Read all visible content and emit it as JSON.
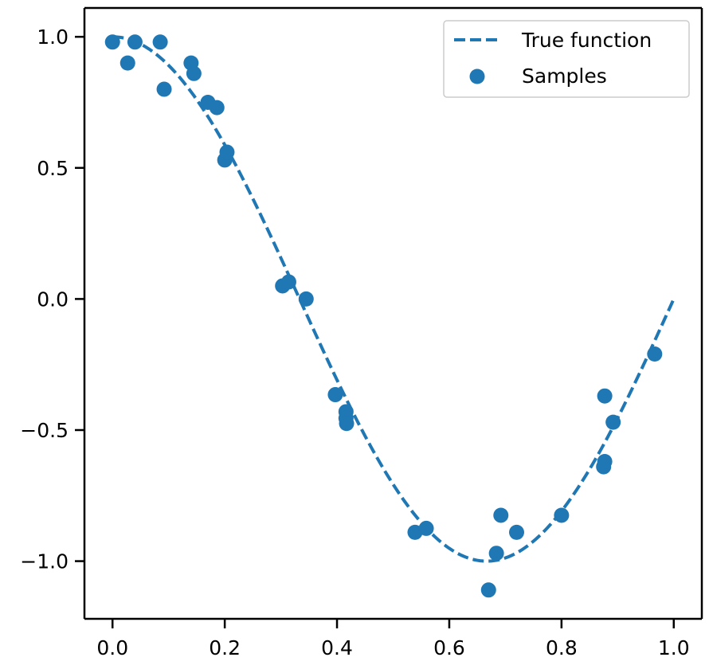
{
  "chart_data": {
    "type": "scatter",
    "title": "",
    "xlabel": "",
    "ylabel": "",
    "xlim": [
      -0.05,
      1.05
    ],
    "ylim": [
      -1.22,
      1.11
    ],
    "x_ticks": [
      0.0,
      0.2,
      0.4,
      0.6,
      0.8,
      1.0
    ],
    "x_tick_labels": [
      "0.0",
      "0.2",
      "0.4",
      "0.6",
      "0.8",
      "1.0"
    ],
    "y_ticks": [
      1.0,
      0.5,
      0.0,
      -0.5,
      -1.0
    ],
    "y_tick_labels": [
      "1.0",
      "0.5",
      "0.0",
      "−0.5",
      "−1.0"
    ],
    "grid": false,
    "legend_position": "top-right",
    "color": "#1f77b4",
    "series": [
      {
        "name": "True function",
        "kind": "line",
        "style": "dashed",
        "function": "cos(1.5*pi*x)",
        "x_range": [
          0.0,
          1.0
        ]
      },
      {
        "name": "Samples",
        "kind": "scatter",
        "points": [
          [
            0.0,
            0.98
          ],
          [
            0.027,
            0.9
          ],
          [
            0.04,
            0.98
          ],
          [
            0.085,
            0.98
          ],
          [
            0.092,
            0.8
          ],
          [
            0.14,
            0.9
          ],
          [
            0.145,
            0.86
          ],
          [
            0.17,
            0.75
          ],
          [
            0.186,
            0.73
          ],
          [
            0.2,
            0.53
          ],
          [
            0.204,
            0.56
          ],
          [
            0.303,
            0.05
          ],
          [
            0.314,
            0.065
          ],
          [
            0.345,
            0.0
          ],
          [
            0.397,
            -0.365
          ],
          [
            0.416,
            -0.43
          ],
          [
            0.416,
            -0.455
          ],
          [
            0.417,
            -0.475
          ],
          [
            0.539,
            -0.89
          ],
          [
            0.559,
            -0.875
          ],
          [
            0.67,
            -1.11
          ],
          [
            0.684,
            -0.97
          ],
          [
            0.692,
            -0.825
          ],
          [
            0.72,
            -0.89
          ],
          [
            0.8,
            -0.825
          ],
          [
            0.875,
            -0.64
          ],
          [
            0.877,
            -0.62
          ],
          [
            0.877,
            -0.37
          ],
          [
            0.892,
            -0.47
          ],
          [
            0.966,
            -0.21
          ]
        ]
      }
    ]
  }
}
